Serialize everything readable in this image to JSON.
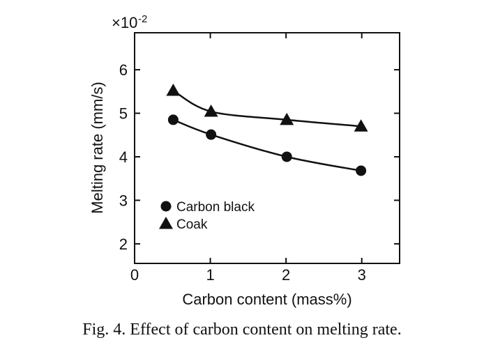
{
  "chart_data": {
    "type": "line",
    "caption": "Fig. 4. Effect of carbon content on melting rate.",
    "x_label": "Carbon content (mass%)",
    "y_label": "Melting rate (mm/s)",
    "y_multiplier": {
      "base": "×10",
      "exponent": "-2"
    },
    "xlim": [
      0,
      3.5
    ],
    "ylim": [
      1.55,
      6.85
    ],
    "xticks": [
      0,
      1,
      2,
      3
    ],
    "yticks": [
      2,
      3,
      4,
      5,
      6
    ],
    "legend": "lower left",
    "series": [
      {
        "name": "Carbon black",
        "color": "#111111",
        "marker": "circle",
        "x": [
          0.51,
          1.01,
          2.01,
          2.99
        ],
        "values": [
          4.85,
          4.51,
          4.0,
          3.68
        ]
      },
      {
        "name": "Coak",
        "color": "#111111",
        "marker": "triangle",
        "x": [
          0.51,
          1.01,
          2.01,
          2.99
        ],
        "values": [
          5.52,
          5.04,
          4.85,
          4.7
        ]
      }
    ]
  }
}
